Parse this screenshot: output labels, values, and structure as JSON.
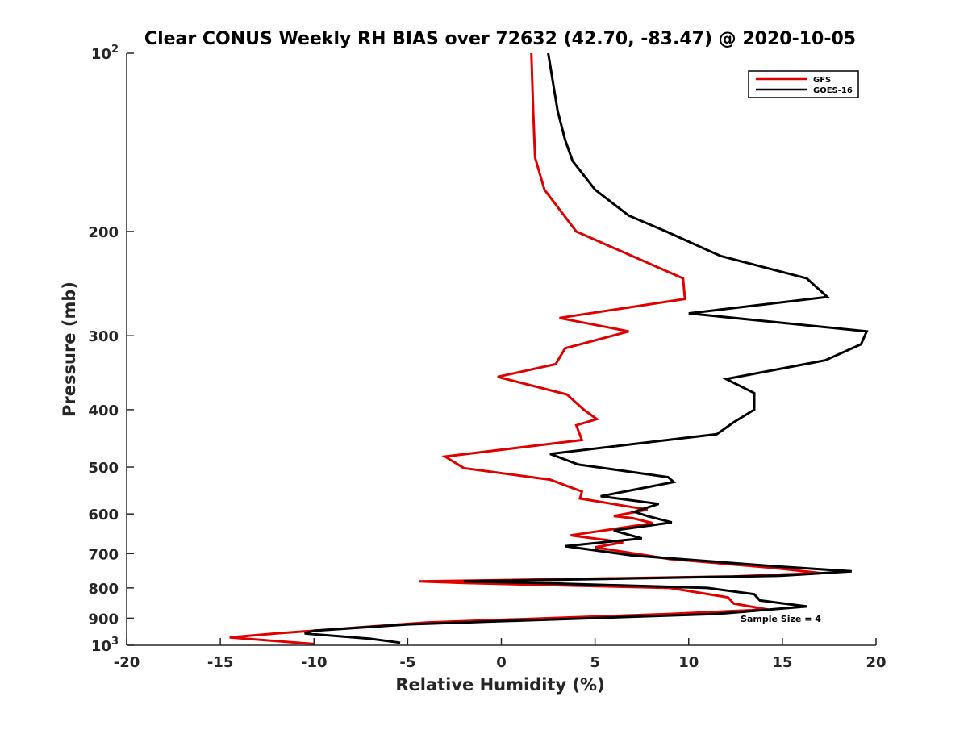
{
  "chart_data": {
    "type": "line",
    "title": "Clear CONUS Weekly RH BIAS over 72632 (42.70, -83.47) @ 2020-10-05",
    "xlabel": "Relative Humidity (%)",
    "ylabel": "Pressure (mb)",
    "xlim": [
      -20,
      20
    ],
    "ylim": [
      100,
      1000
    ],
    "y_scale": "log",
    "y_reversed": true,
    "x_ticks": [
      -20,
      -15,
      -10,
      -5,
      0,
      5,
      10,
      15,
      20
    ],
    "y_ticks": [
      {
        "value": 100,
        "label": "10",
        "exp": "2"
      },
      {
        "value": 200,
        "label": "200",
        "exp": ""
      },
      {
        "value": 300,
        "label": "300",
        "exp": ""
      },
      {
        "value": 400,
        "label": "400",
        "exp": ""
      },
      {
        "value": 500,
        "label": "500",
        "exp": ""
      },
      {
        "value": 600,
        "label": "600",
        "exp": ""
      },
      {
        "value": 700,
        "label": "700",
        "exp": ""
      },
      {
        "value": 800,
        "label": "800",
        "exp": ""
      },
      {
        "value": 900,
        "label": "900",
        "exp": ""
      },
      {
        "value": 1000,
        "label": "10",
        "exp": "3"
      }
    ],
    "grid": false,
    "legend_position": "top-right",
    "annotation": "Sample Size = 4",
    "series": [
      {
        "name": "GFS",
        "color": "#e00000",
        "points": [
          [
            1.6,
            100
          ],
          [
            1.7,
            125
          ],
          [
            1.8,
            150
          ],
          [
            2.3,
            170
          ],
          [
            4.0,
            200
          ],
          [
            9.7,
            240
          ],
          [
            9.8,
            260
          ],
          [
            3.1,
            280
          ],
          [
            6.8,
            295
          ],
          [
            3.4,
            315
          ],
          [
            2.9,
            335
          ],
          [
            -0.2,
            352
          ],
          [
            3.5,
            377
          ],
          [
            4.4,
            400
          ],
          [
            5.1,
            415
          ],
          [
            4.0,
            425
          ],
          [
            4.3,
            450
          ],
          [
            -3.0,
            480
          ],
          [
            -2.0,
            502
          ],
          [
            2.6,
            525
          ],
          [
            4.3,
            550
          ],
          [
            4.2,
            565
          ],
          [
            7.8,
            590
          ],
          [
            6.0,
            605
          ],
          [
            7.0,
            610
          ],
          [
            8.1,
            622
          ],
          [
            3.7,
            652
          ],
          [
            6.5,
            670
          ],
          [
            5.0,
            683
          ],
          [
            9.0,
            715
          ],
          [
            14.5,
            740
          ],
          [
            17.0,
            755
          ],
          [
            12.4,
            765
          ],
          [
            -4.4,
            780
          ],
          [
            -2.0,
            785
          ],
          [
            9.0,
            800
          ],
          [
            12.1,
            830
          ],
          [
            12.4,
            850
          ],
          [
            14.2,
            870
          ],
          [
            9.0,
            885
          ],
          [
            -4.0,
            915
          ],
          [
            -12.0,
            955
          ],
          [
            -14.5,
            970
          ],
          [
            -10.0,
            995
          ]
        ]
      },
      {
        "name": "GOES-16",
        "color": "#000000",
        "points": [
          [
            2.5,
            100
          ],
          [
            3.0,
            125
          ],
          [
            3.4,
            140
          ],
          [
            3.8,
            152
          ],
          [
            5.0,
            170
          ],
          [
            6.8,
            188
          ],
          [
            8.8,
            200
          ],
          [
            11.7,
            220
          ],
          [
            16.3,
            240
          ],
          [
            17.4,
            258
          ],
          [
            10.0,
            275
          ],
          [
            19.5,
            295
          ],
          [
            19.2,
            310
          ],
          [
            17.3,
            330
          ],
          [
            12.0,
            355
          ],
          [
            13.5,
            375
          ],
          [
            13.5,
            400
          ],
          [
            12.4,
            420
          ],
          [
            11.5,
            440
          ],
          [
            2.6,
            475
          ],
          [
            4.1,
            495
          ],
          [
            8.9,
            520
          ],
          [
            9.2,
            530
          ],
          [
            5.3,
            560
          ],
          [
            8.4,
            577
          ],
          [
            7.1,
            595
          ],
          [
            7.8,
            605
          ],
          [
            9.1,
            620
          ],
          [
            6.0,
            640
          ],
          [
            7.5,
            660
          ],
          [
            3.4,
            680
          ],
          [
            7.0,
            705
          ],
          [
            14.5,
            735
          ],
          [
            18.7,
            750
          ],
          [
            14.9,
            763
          ],
          [
            -2.0,
            780
          ],
          [
            2.0,
            785
          ],
          [
            11.0,
            800
          ],
          [
            13.5,
            820
          ],
          [
            13.8,
            840
          ],
          [
            16.3,
            860
          ],
          [
            11.5,
            885
          ],
          [
            -5.0,
            922
          ],
          [
            -10.0,
            945
          ],
          [
            -10.5,
            955
          ],
          [
            -7.0,
            975
          ],
          [
            -5.4,
            990
          ]
        ]
      }
    ]
  }
}
